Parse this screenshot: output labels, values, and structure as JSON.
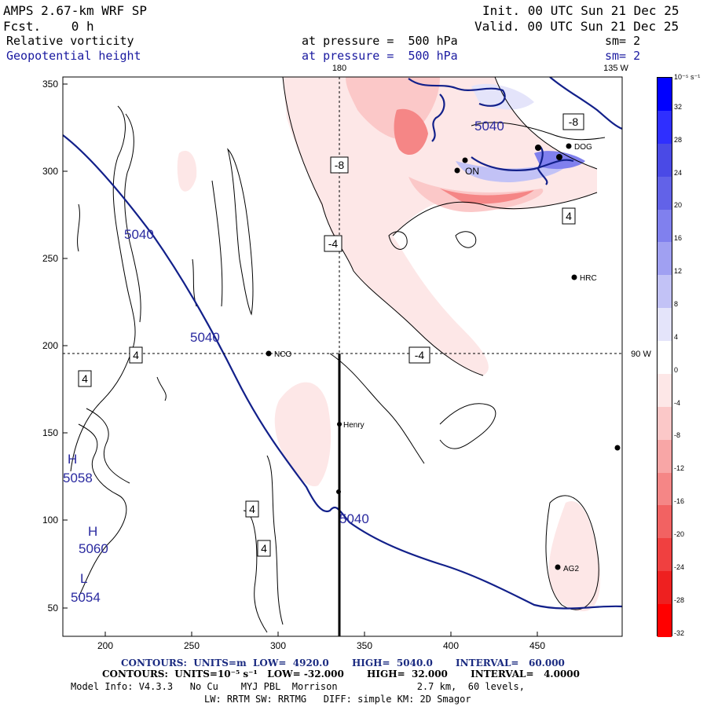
{
  "header": {
    "model": "AMPS 2.67-km WRF SP",
    "fcst": "Fcst.    0 h",
    "init": "Init. 00 UTC Sun 21 Dec 25",
    "valid": "Valid. 00 UTC Sun 21 Dec 25",
    "field1": "Relative vorticity",
    "field1_level": "at pressure =  500 hPa",
    "field1_sm": "sm= 2",
    "field2": "Geopotential height",
    "field2_level": "at pressure =  500 hPa",
    "field2_sm": "sm= 2"
  },
  "map": {
    "meridian_label_top": "180",
    "meridian_label_135": "135 W",
    "meridian_label_90": "90 W",
    "x_ticks": [
      "200",
      "250",
      "300",
      "350",
      "400",
      "450"
    ],
    "y_ticks": [
      "50",
      "100",
      "150",
      "200",
      "250",
      "300",
      "350"
    ],
    "stations": [
      {
        "name": "NCO"
      },
      {
        "name": "Henry"
      },
      {
        "name": "HRC"
      },
      {
        "name": "AG2"
      },
      {
        "name": "DOG"
      },
      {
        "name": "ON"
      }
    ],
    "height_labels": [
      "5040",
      "5040",
      "5040",
      "5040"
    ],
    "highs": [
      {
        "letter": "H",
        "value": "5058"
      },
      {
        "letter": "H",
        "value": "5060"
      }
    ],
    "lows": [
      {
        "letter": "L",
        "value": "5054"
      }
    ],
    "vort_boxes": [
      "4",
      "4",
      "-8",
      "-4",
      "-4",
      "4",
      "4",
      "-8",
      "4"
    ]
  },
  "colorbar": {
    "unit": "10⁻⁵ s⁻¹",
    "labels": [
      "32",
      "28",
      "24",
      "20",
      "16",
      "12",
      "8",
      "4",
      "0",
      "-4",
      "-8",
      "-12",
      "-16",
      "-20",
      "-24",
      "-28",
      "-32"
    ],
    "colors": [
      "#0000ff",
      "#2f2fff",
      "#4a4ae6",
      "#6262e8",
      "#8080ee",
      "#a0a0f2",
      "#c2c2f6",
      "#e4e4fa",
      "#ffffff",
      "#fde7e7",
      "#fbc8c8",
      "#f8a6a6",
      "#f58686",
      "#f26262",
      "#f04040",
      "#ee2020",
      "#ff0000"
    ]
  },
  "footer": {
    "line1": "CONTOURS:  UNITS=m  LOW=  4920.0       HIGH=  5040.0       INTERVAL=   60.000",
    "line2": "CONTOURS:  UNITS=10⁻⁵ s⁻¹   LOW= -32.000       HIGH=  32.000       INTERVAL=   4.0000",
    "line3": "Model Info: V4.3.3   No Cu    MYJ PBL  Morrison              2.7 km,  60 levels,",
    "line4": "LW: RRTM SW: RRTMG   DIFF: simple KM: 2D Smagor"
  }
}
